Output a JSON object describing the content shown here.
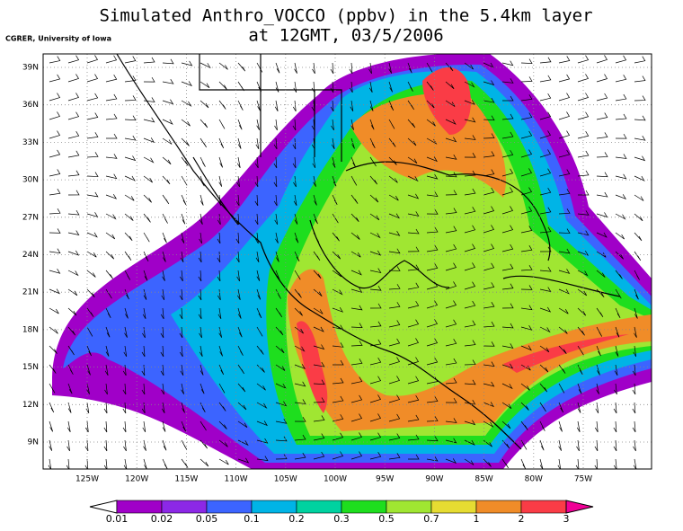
{
  "header": {
    "title": "Simulated Anthro_VOCCO (ppbv) in the 5.4km layer",
    "subtitle": "at 12GMT, 03/5/2006",
    "credit": "CGRER, University of Iowa"
  },
  "map": {
    "lat_ticks": [
      {
        "value": 39,
        "label": "39N"
      },
      {
        "value": 36,
        "label": "36N"
      },
      {
        "value": 33,
        "label": "33N"
      },
      {
        "value": 30,
        "label": "30N"
      },
      {
        "value": 27,
        "label": "27N"
      },
      {
        "value": 24,
        "label": "24N"
      },
      {
        "value": 21,
        "label": "21N"
      },
      {
        "value": 18,
        "label": "18N"
      },
      {
        "value": 15,
        "label": "15N"
      },
      {
        "value": 12,
        "label": "12N"
      },
      {
        "value": 9,
        "label": "9N"
      }
    ],
    "lon_ticks": [
      {
        "value": 125,
        "label": "125W"
      },
      {
        "value": 120,
        "label": "120W"
      },
      {
        "value": 115,
        "label": "115W"
      },
      {
        "value": 110,
        "label": "110W"
      },
      {
        "value": 105,
        "label": "105W"
      },
      {
        "value": 100,
        "label": "100W"
      },
      {
        "value": 95,
        "label": "95W"
      },
      {
        "value": 90,
        "label": "90W"
      },
      {
        "value": 85,
        "label": "85W"
      },
      {
        "value": 80,
        "label": "80W"
      },
      {
        "value": 75,
        "label": "75W"
      }
    ]
  },
  "colorbar": {
    "levels": [
      0.01,
      0.02,
      0.05,
      0.1,
      0.2,
      0.3,
      0.5,
      0.7,
      1,
      2,
      3
    ],
    "colors": [
      "#ffffff",
      "#a000c8",
      "#8c28e6",
      "#3c64ff",
      "#00b4e6",
      "#00d2a0",
      "#1ede1e",
      "#a0e632",
      "#e6dc32",
      "#f08c28",
      "#fa3c46",
      "#f00096"
    ]
  }
}
